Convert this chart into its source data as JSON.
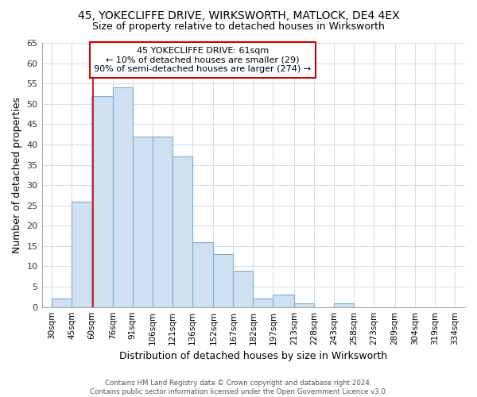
{
  "title_line1": "45, YOKECLIFFE DRIVE, WIRKSWORTH, MATLOCK, DE4 4EX",
  "title_line2": "Size of property relative to detached houses in Wirksworth",
  "xlabel": "Distribution of detached houses by size in Wirksworth",
  "ylabel": "Number of detached properties",
  "bar_left_edges": [
    30,
    45,
    60,
    76,
    91,
    106,
    121,
    136,
    152,
    167,
    182,
    197,
    213,
    228,
    243,
    258,
    273,
    289,
    304,
    319
  ],
  "bar_widths": [
    15,
    15,
    16,
    15,
    15,
    15,
    15,
    16,
    15,
    15,
    15,
    16,
    15,
    15,
    15,
    15,
    16,
    15,
    15,
    15
  ],
  "bar_heights": [
    2,
    26,
    52,
    54,
    42,
    42,
    37,
    16,
    13,
    9,
    2,
    3,
    1,
    0,
    1,
    0,
    0,
    0,
    0,
    0
  ],
  "bar_color": "#cfe0f0",
  "bar_edge_color": "#7bafd4",
  "property_line_x": 61,
  "property_line_color": "#cc0000",
  "ylim": [
    0,
    65
  ],
  "yticks": [
    0,
    5,
    10,
    15,
    20,
    25,
    30,
    35,
    40,
    45,
    50,
    55,
    60,
    65
  ],
  "x_tick_labels": [
    "30sqm",
    "45sqm",
    "60sqm",
    "76sqm",
    "91sqm",
    "106sqm",
    "121sqm",
    "136sqm",
    "152sqm",
    "167sqm",
    "182sqm",
    "197sqm",
    "213sqm",
    "228sqm",
    "243sqm",
    "258sqm",
    "273sqm",
    "289sqm",
    "304sqm",
    "319sqm",
    "334sqm"
  ],
  "x_tick_positions": [
    30,
    45,
    60,
    76,
    91,
    106,
    121,
    136,
    152,
    167,
    182,
    197,
    213,
    228,
    243,
    258,
    273,
    289,
    304,
    319,
    334
  ],
  "annotation_title": "45 YOKECLIFFE DRIVE: 61sqm",
  "annotation_line1": "← 10% of detached houses are smaller (29)",
  "annotation_line2": "90% of semi-detached houses are larger (274) →",
  "footer_line1": "Contains HM Land Registry data © Crown copyright and database right 2024.",
  "footer_line2": "Contains public sector information licensed under the Open Government Licence v3.0.",
  "background_color": "#ffffff",
  "grid_color": "#d0dce8"
}
